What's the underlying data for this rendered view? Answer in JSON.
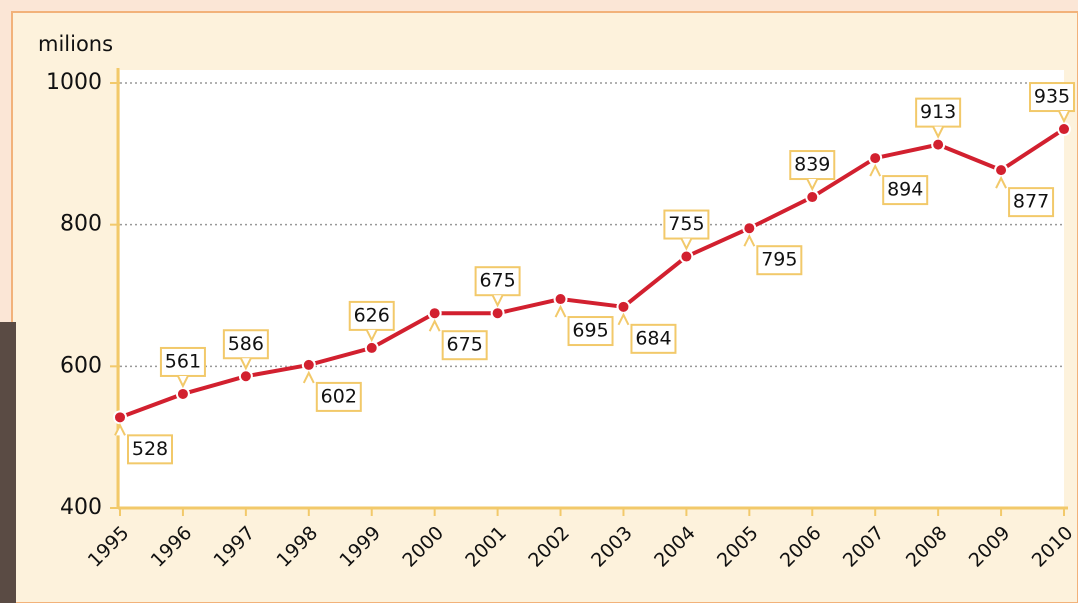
{
  "chart_data": {
    "type": "line",
    "y_label": "milions",
    "categories": [
      "1995",
      "1996",
      "1997",
      "1998",
      "1999",
      "2000",
      "2001",
      "2002",
      "2003",
      "2004",
      "2005",
      "2006",
      "2007",
      "2008",
      "2009",
      "2010"
    ],
    "series": [
      {
        "name": "milions",
        "color": "#d2202f",
        "values": [
          528,
          561,
          586,
          602,
          626,
          675,
          675,
          695,
          684,
          755,
          795,
          839,
          894,
          913,
          877,
          935
        ]
      }
    ],
    "ylim": [
      400,
      1000
    ],
    "yticks": [
      400,
      600,
      800,
      1000
    ],
    "grid": true
  }
}
